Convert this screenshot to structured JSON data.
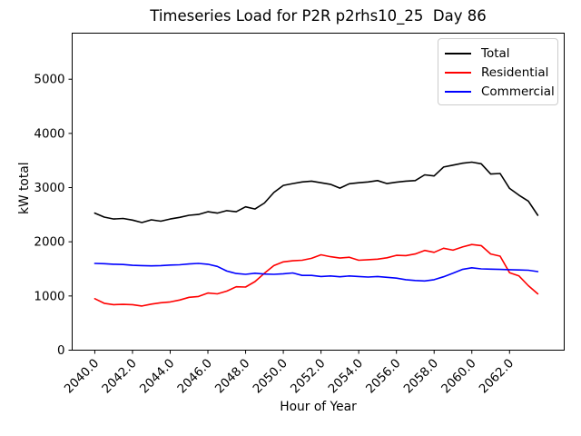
{
  "window": {
    "background": "#ffffff"
  },
  "chart_data": {
    "type": "line",
    "title": "Timeseries Load for P2R p2rhs10_25  Day 86",
    "xlabel": "Hour of Year",
    "ylabel": "kW total",
    "grid": false,
    "legend_position": "upper right",
    "xlim": [
      2038.8,
      2064.9
    ],
    "ylim": [
      0,
      5850
    ],
    "xticks": {
      "values": [
        2040,
        2042,
        2044,
        2046,
        2048,
        2050,
        2052,
        2054,
        2056,
        2058,
        2060,
        2062
      ],
      "labels": [
        "2040.0",
        "2042.0",
        "2044.0",
        "2046.0",
        "2048.0",
        "2050.0",
        "2052.0",
        "2054.0",
        "2056.0",
        "2058.0",
        "2060.0",
        "2062.0"
      ]
    },
    "yticks": {
      "values": [
        0,
        1000,
        2000,
        3000,
        4000,
        5000
      ],
      "labels": [
        "0",
        "1000",
        "2000",
        "3000",
        "4000",
        "5000"
      ]
    },
    "x": [
      2040.0,
      2040.5,
      2041.0,
      2041.5,
      2042.0,
      2042.5,
      2043.0,
      2043.5,
      2044.0,
      2044.5,
      2045.0,
      2045.5,
      2046.0,
      2046.5,
      2047.0,
      2047.5,
      2048.0,
      2048.5,
      2049.0,
      2049.5,
      2050.0,
      2050.5,
      2051.0,
      2051.5,
      2052.0,
      2052.5,
      2053.0,
      2053.5,
      2054.0,
      2054.5,
      2055.0,
      2055.5,
      2056.0,
      2056.5,
      2057.0,
      2057.5,
      2058.0,
      2058.5,
      2059.0,
      2059.5,
      2060.0,
      2060.5,
      2061.0,
      2061.5,
      2062.0,
      2062.5,
      2063.0,
      2063.5
    ],
    "series": [
      {
        "name": "Total",
        "color": "#000000",
        "values": [
          2530,
          2455,
          2420,
          2430,
          2400,
          2355,
          2405,
          2380,
          2420,
          2450,
          2490,
          2505,
          2555,
          2530,
          2575,
          2555,
          2645,
          2605,
          2715,
          2910,
          3040,
          3075,
          3105,
          3120,
          3090,
          3060,
          2990,
          3070,
          3090,
          3105,
          3130,
          3075,
          3100,
          3120,
          3130,
          3235,
          3215,
          3380,
          3415,
          3450,
          3470,
          3440,
          3250,
          3260,
          2985,
          2860,
          2750,
          2490
        ]
      },
      {
        "name": "Residential",
        "color": "#ff0000",
        "values": [
          950,
          865,
          840,
          845,
          840,
          815,
          850,
          875,
          890,
          925,
          975,
          990,
          1055,
          1040,
          1090,
          1170,
          1165,
          1265,
          1420,
          1560,
          1630,
          1650,
          1660,
          1695,
          1760,
          1725,
          1700,
          1715,
          1660,
          1670,
          1680,
          1705,
          1750,
          1745,
          1775,
          1840,
          1805,
          1880,
          1845,
          1905,
          1950,
          1930,
          1775,
          1735,
          1430,
          1370,
          1190,
          1040
        ]
      },
      {
        "name": "Commercial",
        "color": "#0000ff",
        "values": [
          1600,
          1595,
          1585,
          1580,
          1565,
          1560,
          1555,
          1560,
          1570,
          1575,
          1590,
          1600,
          1585,
          1545,
          1460,
          1415,
          1400,
          1420,
          1405,
          1400,
          1410,
          1425,
          1380,
          1380,
          1360,
          1370,
          1355,
          1370,
          1360,
          1350,
          1360,
          1345,
          1330,
          1300,
          1285,
          1278,
          1300,
          1355,
          1420,
          1490,
          1520,
          1500,
          1495,
          1490,
          1485,
          1480,
          1475,
          1450
        ]
      }
    ]
  }
}
